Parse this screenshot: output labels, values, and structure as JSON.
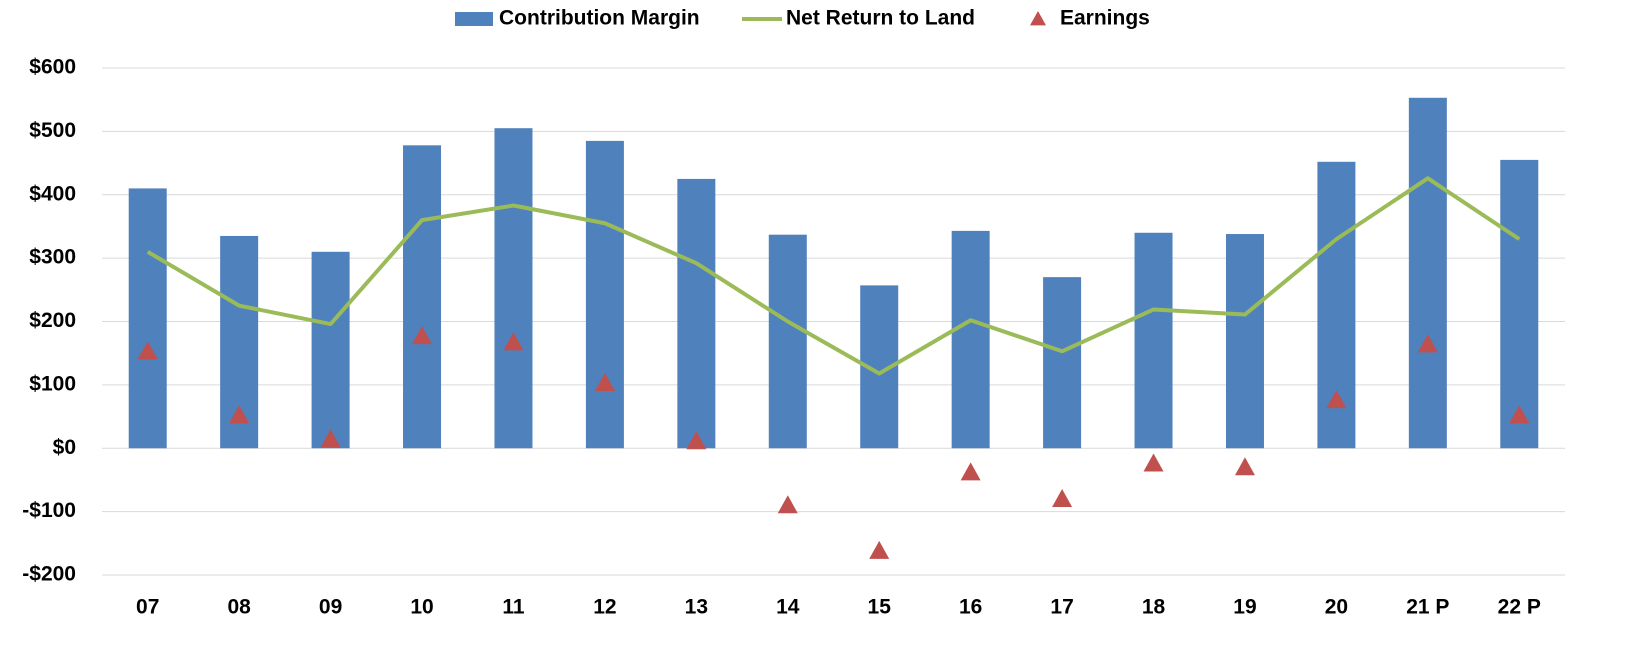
{
  "chart_data": {
    "type": "bar",
    "categories": [
      "07",
      "08",
      "09",
      "10",
      "11",
      "12",
      "13",
      "14",
      "15",
      "16",
      "17",
      "18",
      "19",
      "20",
      "21 P",
      "22 P"
    ],
    "series": [
      {
        "name": "Contribution Margin",
        "type": "bar",
        "color": "#4f81bd",
        "values": [
          410,
          335,
          310,
          478,
          505,
          485,
          425,
          337,
          257,
          343,
          270,
          340,
          338,
          452,
          553,
          455
        ]
      },
      {
        "name": "Net Return to Land",
        "type": "line",
        "color": "#9bbb59",
        "values": [
          310,
          225,
          196,
          360,
          383,
          355,
          292,
          200,
          118,
          202,
          153,
          219,
          211,
          330,
          426,
          330
        ]
      },
      {
        "name": "Earnings",
        "type": "scatter",
        "color": "#c0504d",
        "values": [
          153,
          52,
          14,
          177,
          167,
          103,
          11,
          -90,
          -162,
          -38,
          -80,
          -24,
          -30,
          76,
          164,
          52
        ]
      }
    ],
    "ylim": [
      -200,
      600
    ],
    "yticks": [
      {
        "value": -200,
        "label": "-$200"
      },
      {
        "value": -100,
        "label": "-$100"
      },
      {
        "value": 0,
        "label": "$0"
      },
      {
        "value": 100,
        "label": "$100"
      },
      {
        "value": 200,
        "label": "$200"
      },
      {
        "value": 300,
        "label": "$300"
      },
      {
        "value": 400,
        "label": "$400"
      },
      {
        "value": 500,
        "label": "$500"
      },
      {
        "value": 600,
        "label": "$600"
      }
    ],
    "grid": true,
    "legend": "top"
  }
}
